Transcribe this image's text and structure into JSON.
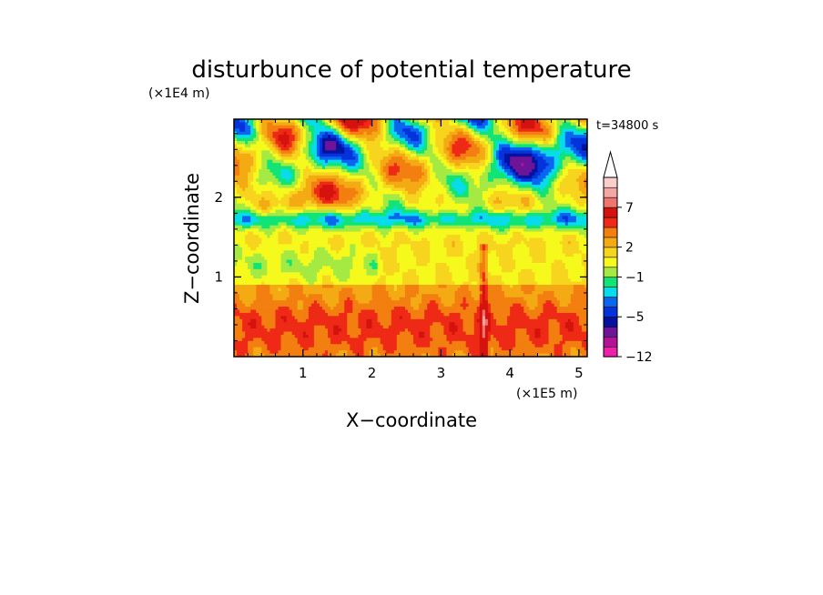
{
  "chart_data": {
    "type": "heatmap",
    "title": "disturbunce of potential temperature",
    "xlabel": "X−coordinate",
    "ylabel": "Z−coordinate",
    "x_unit": "(×1E5 m)",
    "y_unit": "(×1E4 m)",
    "time_label": "t=34800 s",
    "xlim": [
      0,
      5.12
    ],
    "ylim": [
      0,
      2.98
    ],
    "x_ticks": [
      1,
      2,
      3,
      4,
      5
    ],
    "x_tick_labels": [
      "1",
      "2",
      "3",
      "4",
      "5"
    ],
    "y_ticks": [
      1,
      2
    ],
    "y_tick_labels": [
      "1",
      "2"
    ],
    "colorbar": {
      "levels": [
        -12,
        -10,
        -8,
        -6,
        -5,
        -4,
        -3,
        -2,
        -1,
        0,
        1,
        2,
        3,
        4,
        5,
        7,
        8,
        9,
        10
      ],
      "colors": [
        "#ee1fa8",
        "#b4109a",
        "#6e1498",
        "#0512a0",
        "#0433dc",
        "#0b66ef",
        "#08dcea",
        "#11e477",
        "#a4ea42",
        "#f5f91c",
        "#f7d51f",
        "#f4aa13",
        "#f37f11",
        "#ee2a17",
        "#d5130e",
        "#ee766f",
        "#f2a7a2",
        "#f9cfcb"
      ],
      "tick_values": [
        -12,
        -5,
        -1,
        2,
        7
      ],
      "tick_labels": [
        "−12",
        "−5",
        "−1",
        "2",
        "7"
      ],
      "extend": "max"
    }
  }
}
